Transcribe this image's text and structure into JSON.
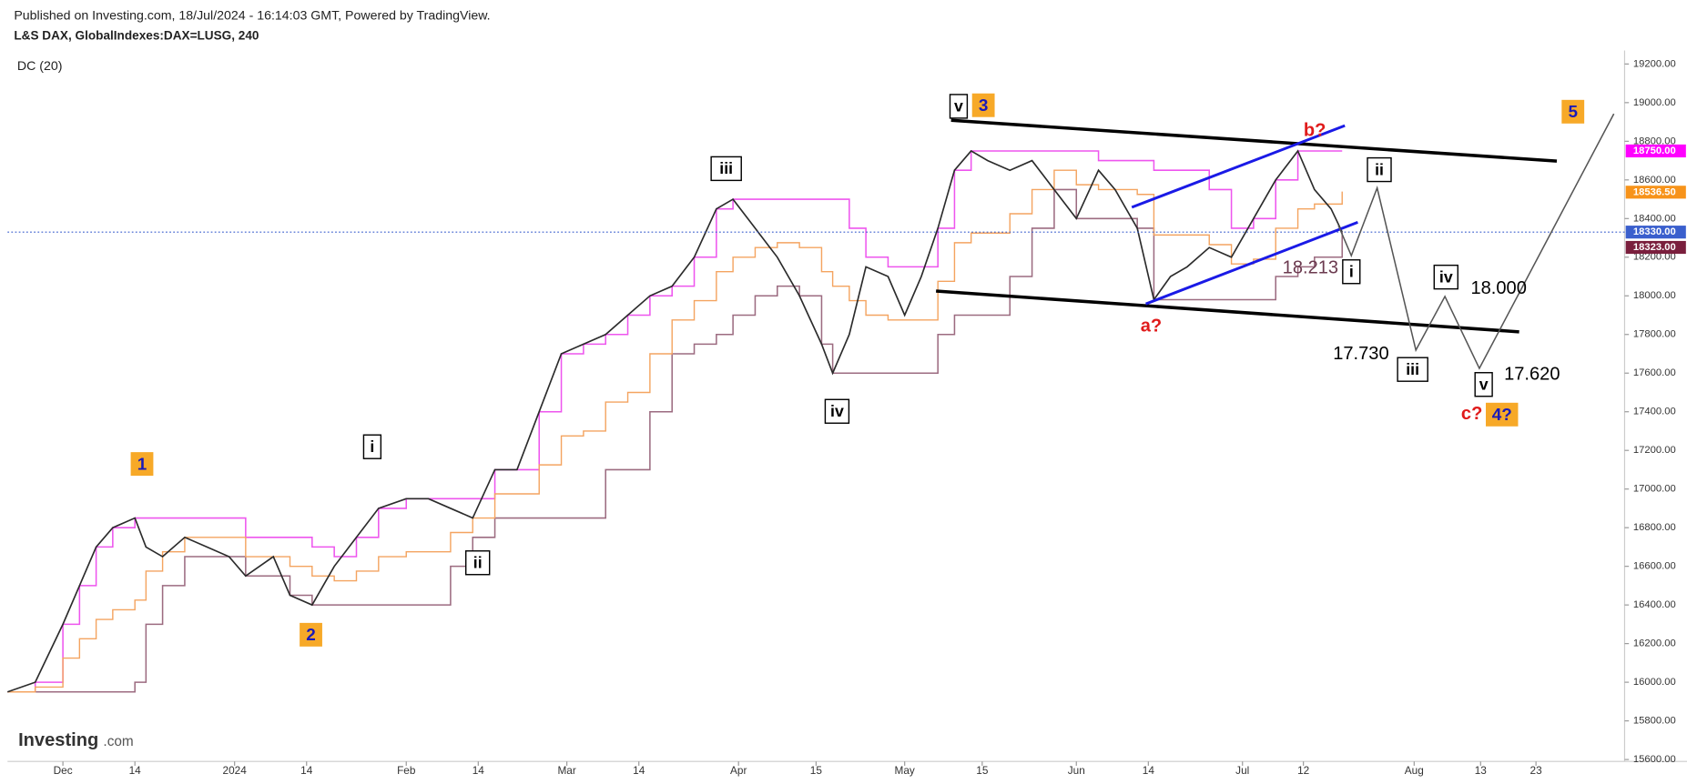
{
  "header": {
    "published": "Published on Investing.com, 18/Jul/2024 - 16:14:03 GMT, Powered by TradingView.",
    "symbol": "L&S DAX, GlobalIndexes:DAX=LUSG, 240",
    "indicator": "DC (20)"
  },
  "watermark": {
    "brand": "Investing",
    "suffix": ".com"
  },
  "chart_data": {
    "type": "line",
    "color": "#2b2b2b",
    "x": [
      -10,
      -5,
      0,
      3,
      6,
      9,
      13,
      15,
      18,
      22,
      26,
      30,
      33,
      38,
      41,
      45,
      49,
      53,
      57,
      62,
      66,
      70,
      74,
      78,
      82,
      86,
      90,
      94,
      98,
      102,
      106,
      110,
      114,
      118,
      121,
      125,
      129,
      133,
      137,
      139,
      142,
      145,
      149,
      152,
      155,
      158,
      161,
      164,
      167,
      171,
      175,
      179,
      183,
      187,
      190,
      194,
      197,
      200,
      203,
      207,
      211,
      215,
      219,
      223,
      226,
      229,
      231
    ],
    "values": [
      15950,
      16000,
      16300,
      16500,
      16700,
      16800,
      16850,
      16700,
      16650,
      16750,
      16700,
      16650,
      16550,
      16650,
      16450,
      16400,
      16600,
      16750,
      16900,
      16950,
      16950,
      16900,
      16850,
      17100,
      17100,
      17400,
      17700,
      17750,
      17800,
      17900,
      18000,
      18050,
      18200,
      18450,
      18500,
      18350,
      18200,
      18000,
      17750,
      17600,
      17800,
      18150,
      18100,
      17900,
      18100,
      18350,
      18650,
      18750,
      18700,
      18650,
      18700,
      18550,
      18400,
      18650,
      18550,
      18350,
      17980,
      18100,
      18150,
      18250,
      18200,
      18400,
      18600,
      18750,
      18550,
      18450,
      18330
    ],
    "xlim": [
      -10,
      282
    ],
    "xticks": [
      {
        "value": 0,
        "label": "Dec"
      },
      {
        "value": 13,
        "label": "14"
      },
      {
        "value": 31,
        "label": "2024"
      },
      {
        "value": 44,
        "label": "14"
      },
      {
        "value": 62,
        "label": "Feb"
      },
      {
        "value": 75,
        "label": "14"
      },
      {
        "value": 91,
        "label": "Mar"
      },
      {
        "value": 104,
        "label": "14"
      },
      {
        "value": 122,
        "label": "Apr"
      },
      {
        "value": 136,
        "label": "15"
      },
      {
        "value": 152,
        "label": "May"
      },
      {
        "value": 166,
        "label": "15"
      },
      {
        "value": 183,
        "label": "Jun"
      },
      {
        "value": 196,
        "label": "14"
      },
      {
        "value": 213,
        "label": "Jul"
      },
      {
        "value": 224,
        "label": "12"
      },
      {
        "value": 244,
        "label": "Aug"
      },
      {
        "value": 256,
        "label": "13"
      },
      {
        "value": 266,
        "label": "23"
      }
    ],
    "ylim": [
      15590,
      19270
    ],
    "yticks": [
      {
        "value": 15600,
        "label": "15600.00"
      },
      {
        "value": 15800,
        "label": "15800.00"
      },
      {
        "value": 16000,
        "label": "16000.00"
      },
      {
        "value": 16200,
        "label": "16200.00"
      },
      {
        "value": 16400,
        "label": "16400.00"
      },
      {
        "value": 16600,
        "label": "16600.00"
      },
      {
        "value": 16800,
        "label": "16800.00"
      },
      {
        "value": 17000,
        "label": "17000.00"
      },
      {
        "value": 17200,
        "label": "17200.00"
      },
      {
        "value": 17400,
        "label": "17400.00"
      },
      {
        "value": 17600,
        "label": "17600.00"
      },
      {
        "value": 17800,
        "label": "17800.00"
      },
      {
        "value": 18000,
        "label": "18000.00"
      },
      {
        "value": 18200,
        "label": "18200.00"
      },
      {
        "value": 18400,
        "label": "18400.00"
      },
      {
        "value": 18600,
        "label": "18600.00"
      },
      {
        "value": 18800,
        "label": "18800.00"
      },
      {
        "value": 19000,
        "label": "19000.00"
      },
      {
        "value": 19200,
        "label": "19200.00"
      }
    ],
    "price_tags": [
      {
        "value": 18750,
        "label": "18750.00",
        "color": "#ff00ff"
      },
      {
        "value": 18536.5,
        "label": "18536.50",
        "color": "#f7931a"
      },
      {
        "value": 18330,
        "label": "18330.00",
        "color": "#3a5fcd"
      },
      {
        "value": 18323,
        "label": "18323.00",
        "color": "#7a1f3d"
      }
    ],
    "annotations": [
      "v",
      "iii",
      "i",
      "ii",
      "iv",
      "ii",
      "i",
      "iv",
      "iii",
      "v",
      "3",
      "1",
      "2",
      "5",
      "4?",
      "b?",
      "a?",
      "c?",
      "18.213",
      "17.730",
      "18.000",
      "17.620"
    ]
  }
}
